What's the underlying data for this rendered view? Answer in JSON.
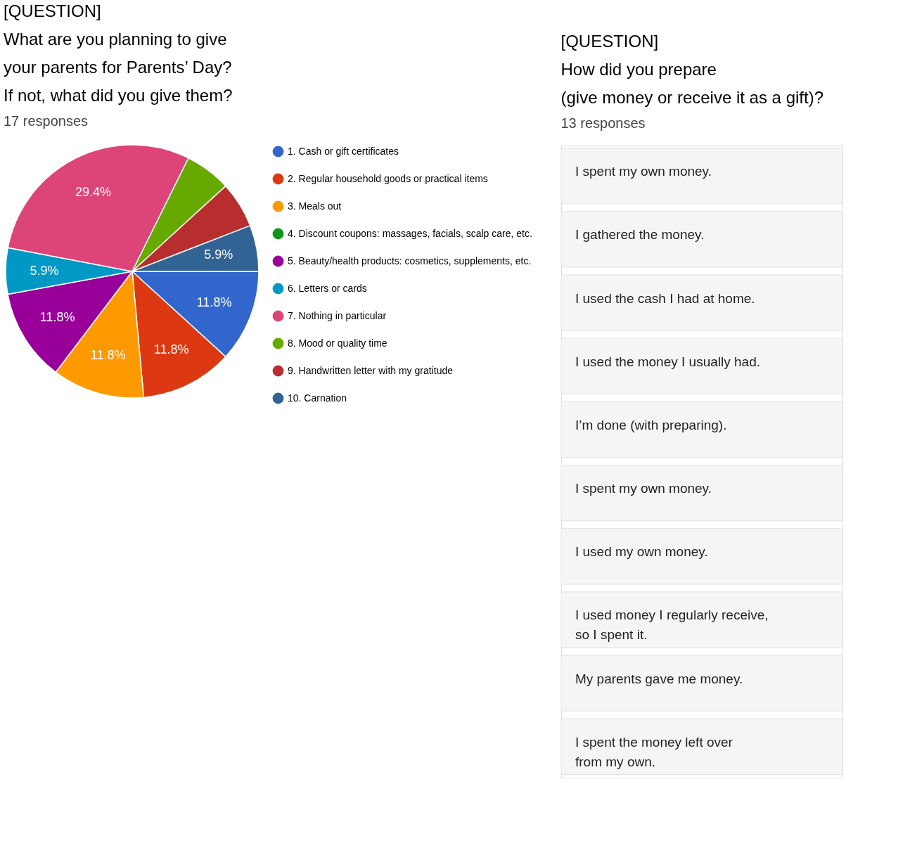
{
  "chart_data": [
    {
      "type": "pie",
      "title": "[QUESTION]",
      "subtitle": "What are you planning to give\nyour parents for Parents’ Day?\nIf not, what did you give them?",
      "annotations": [
        "17 responses"
      ],
      "categories": [
        "1. Cash or gift certificates",
        "2. Regular household goods or practical items",
        "3. Meals out",
        "4. Discount coupons: massages, facials, scalp care, etc.",
        "5. Beauty/health products: cosmetics, supplements, etc.",
        "6. Letters or cards",
        "7. Nothing in particular",
        "8. Mood or quality time",
        "9. Handwritten letter with my gratitude",
        "10. Carnation"
      ],
      "values": [
        11.8,
        11.8,
        11.8,
        0,
        11.8,
        5.9,
        29.4,
        5.9,
        5.9,
        5.9
      ],
      "value_labels": [
        "11.8%",
        "11.8%",
        "11.8%",
        null,
        "11.8%",
        "5.9%",
        "29.4%",
        null,
        null,
        "5.9%"
      ],
      "colors": [
        "#3366cc",
        "#dc3912",
        "#ff9900",
        "#109618",
        "#990099",
        "#0099c6",
        "#dd4477",
        "#66aa00",
        "#b82e2e",
        "#316395"
      ],
      "legend": "right"
    },
    {
      "type": "other",
      "title": "[QUESTION]",
      "subtitle": "How did you prepare\n(give money or receive it as a gift)?",
      "annotations": [
        "13 responses"
      ],
      "categories": [
        "I spent my own money.",
        "I gathered the money.",
        "I used the cash I had at home.",
        "I used the money I usually had.",
        "I’m done (with preparing).",
        "I spent my own money.",
        "I used my own money.",
        "I used money I regularly receive,\nso I spent it.",
        "My parents gave me money.",
        "I spent the money left over\nfrom my own."
      ]
    }
  ]
}
